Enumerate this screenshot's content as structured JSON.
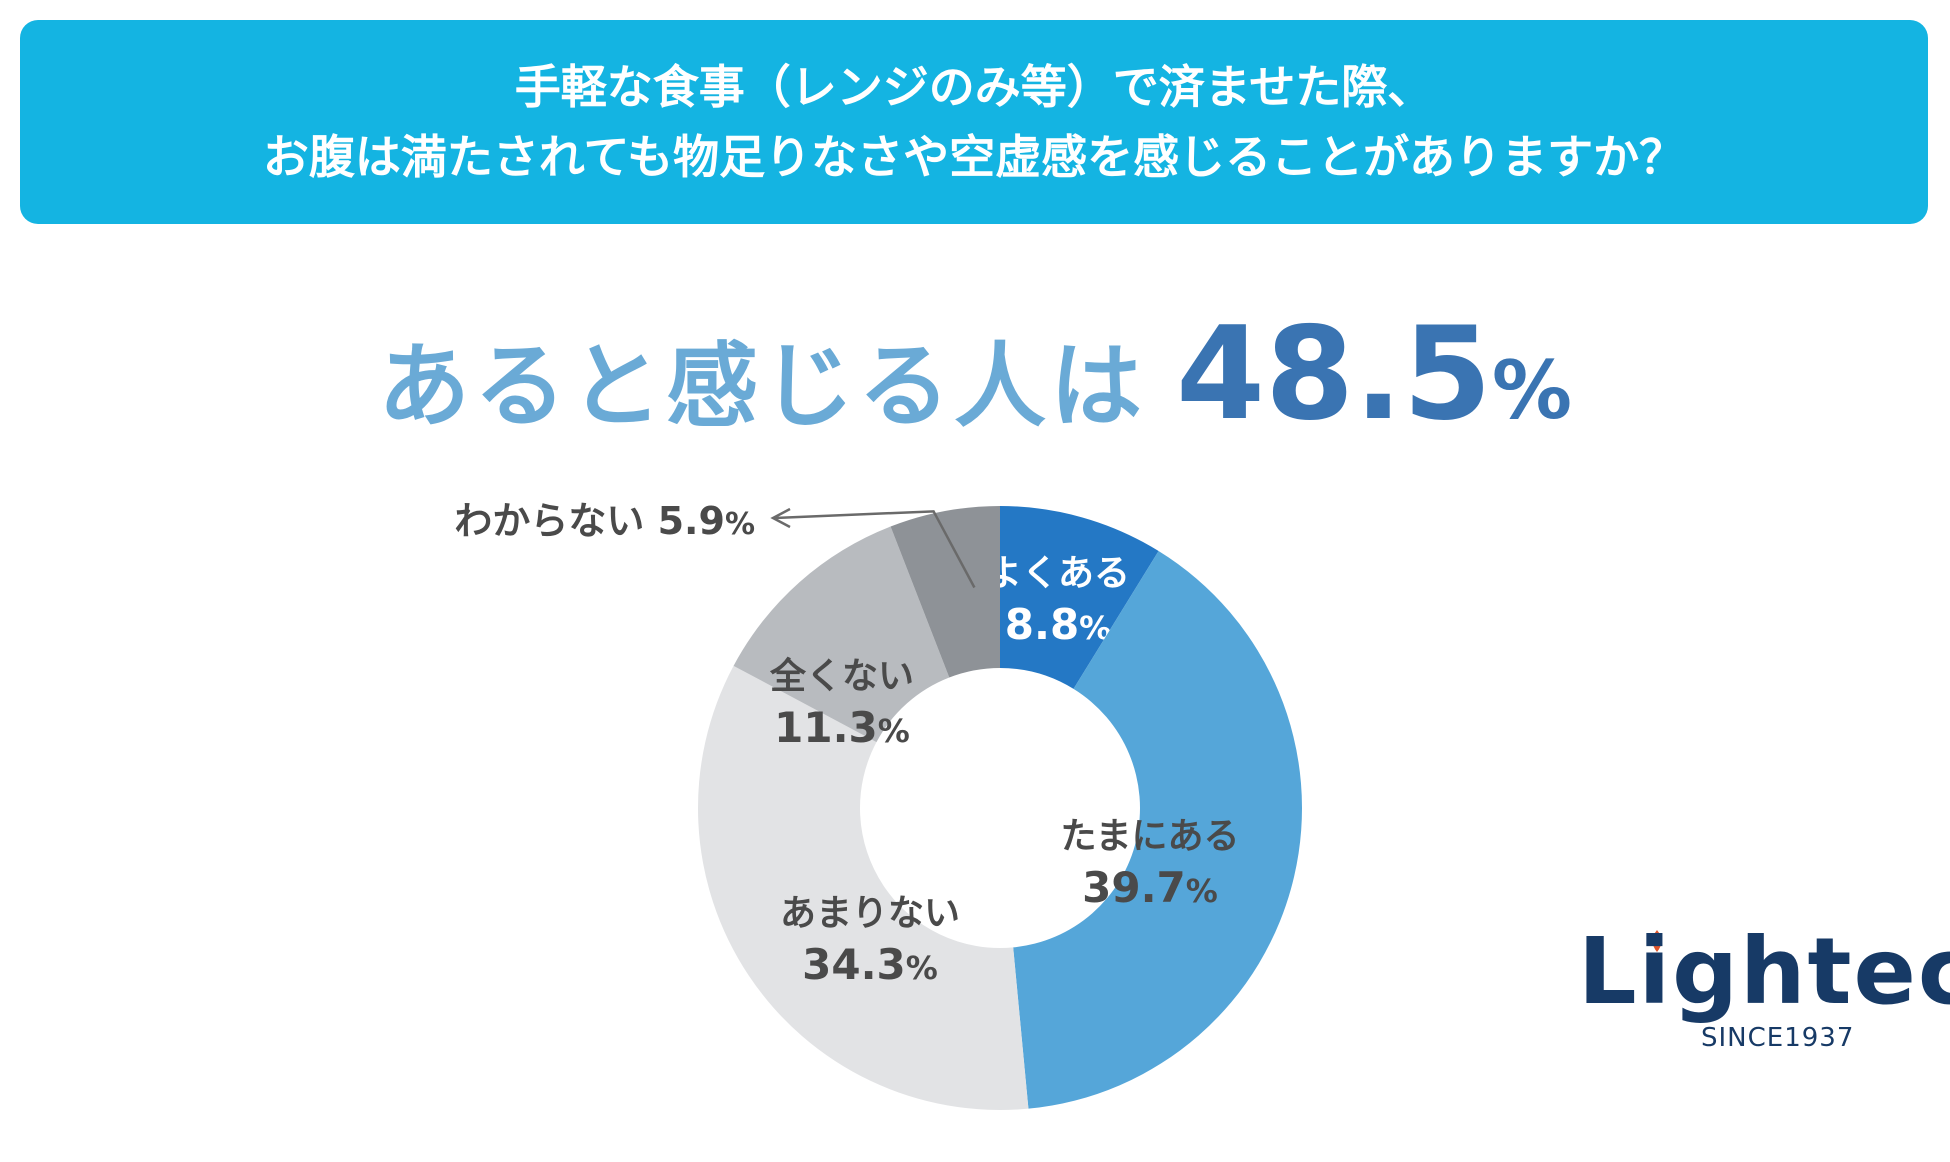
{
  "title": {
    "line1": "手軽な食事（レンジのみ等）で済ませた際、",
    "line2": "お腹は満たされても物足りなさや空虚感を感じることがありますか？"
  },
  "headline": {
    "lead": "あると感じる人は",
    "value": "48.5",
    "unit": "%"
  },
  "chart_data": {
    "type": "pie",
    "variant": "donut",
    "unit": "%",
    "slices": [
      {
        "label": "よくある",
        "value": 8.8,
        "value_text": "8.8",
        "color": "#2478c5",
        "label_color": "#ffffff"
      },
      {
        "label": "たまにある",
        "value": 39.7,
        "value_text": "39.7",
        "color": "#55a6d9",
        "label_color": "#4a4a4a"
      },
      {
        "label": "あまりない",
        "value": 34.3,
        "value_text": "34.3",
        "color": "#e2e3e5",
        "label_color": "#4a4a4a"
      },
      {
        "label": "全くない",
        "value": 11.3,
        "value_text": "11.3",
        "color": "#b8bbbf",
        "label_color": "#4a4a4a"
      },
      {
        "label": "わからない",
        "value": 5.9,
        "value_text": "5.9",
        "color": "#8e9297",
        "label_color": "#4a4a4a",
        "callout": true
      }
    ]
  },
  "logo": {
    "name": "Lightec",
    "since": "SINCE1937"
  }
}
